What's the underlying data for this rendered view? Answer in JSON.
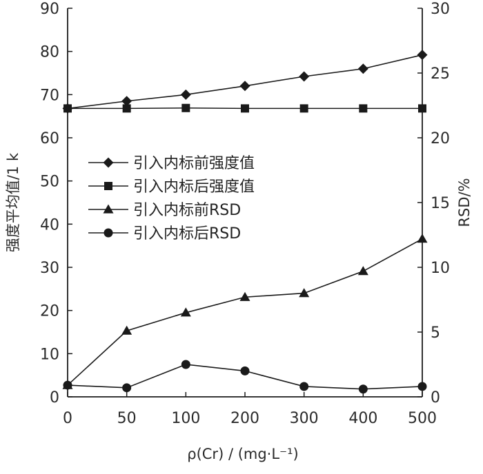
{
  "chart_data": {
    "type": "line",
    "categories": [
      "0",
      "50",
      "100",
      "200",
      "300",
      "400",
      "500"
    ],
    "series": [
      {
        "name": "引入内标前强度值",
        "axis": "left",
        "marker": "diamond",
        "values": [
          66.8,
          68.5,
          70.0,
          72.0,
          74.2,
          76.0,
          79.2
        ]
      },
      {
        "name": "引入内标后强度值",
        "axis": "left",
        "marker": "square",
        "values": [
          66.8,
          66.8,
          66.9,
          66.8,
          66.8,
          66.8,
          66.8
        ]
      },
      {
        "name": "引入内标前RSD",
        "axis": "right",
        "marker": "triangle",
        "values": [
          0.9,
          5.1,
          6.5,
          7.7,
          8.0,
          9.7,
          12.2
        ]
      },
      {
        "name": "引入内标后RSD",
        "axis": "right",
        "marker": "circle",
        "values": [
          0.9,
          0.7,
          2.5,
          2.0,
          0.8,
          0.6,
          0.8
        ]
      }
    ],
    "xlabel": "ρ(Cr) / (mg·L⁻¹)",
    "ylabel": "强度平均值/1 k",
    "y2label": "RSD/%",
    "ylim": [
      0,
      90
    ],
    "yticks": [
      "0",
      "10",
      "20",
      "30",
      "40",
      "50",
      "60",
      "70",
      "80",
      "90"
    ],
    "y2lim": [
      0,
      30
    ],
    "y2ticks": [
      "0",
      "5",
      "10",
      "15",
      "20",
      "25",
      "30"
    ],
    "grid": false,
    "legend_position": "center-left",
    "color": "#1a1a1a"
  }
}
